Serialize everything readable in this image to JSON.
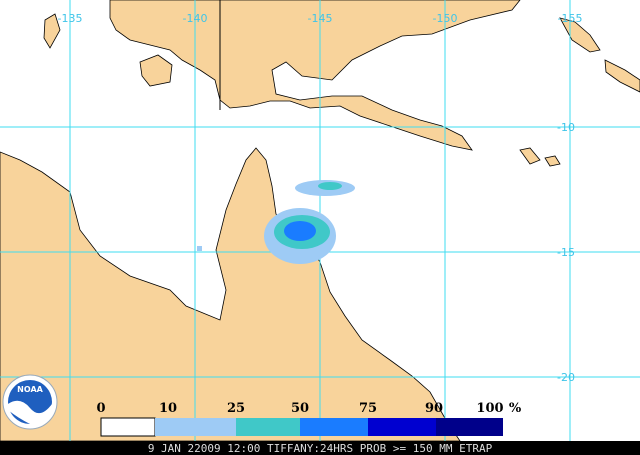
{
  "longitude_labels": [
    "-135",
    "-140",
    "-145",
    "-150",
    "-155"
  ],
  "latitude_labels": [
    "-10",
    "-15",
    "-20"
  ],
  "legend": {
    "labels": [
      "0",
      "10",
      "25",
      "50",
      "75",
      "90",
      "100"
    ],
    "unit": "%"
  },
  "logo": "NOAA",
  "footer": "9 JAN 22009 12:00 TIFFANY:24HRS PROB >= 150 MM ETRAP"
}
